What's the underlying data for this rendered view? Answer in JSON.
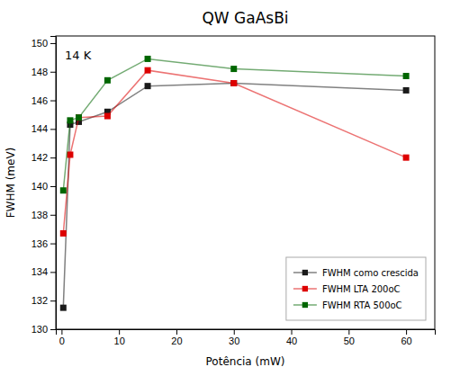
{
  "chart_data": {
    "type": "line",
    "title": "QW GaAsBi",
    "xlabel": "Potência (mW)",
    "ylabel": "FWHM (meV)",
    "annotation": "14 K",
    "xlim": [
      -1,
      65
    ],
    "ylim": [
      130,
      150.5
    ],
    "xticks": [
      0,
      10,
      20,
      30,
      40,
      50,
      60
    ],
    "yticks": [
      130,
      132,
      134,
      136,
      138,
      140,
      142,
      144,
      146,
      148,
      150
    ],
    "grid": false,
    "legend": "lower right",
    "series": [
      {
        "name": "FWHM como crescida",
        "color": "#1a1a1a",
        "marker": "square",
        "x": [
          0.3,
          1.5,
          3.0,
          8.0,
          15.0,
          30.0,
          60.0
        ],
        "values": [
          131.5,
          144.3,
          144.5,
          145.2,
          147.0,
          147.2,
          146.7
        ]
      },
      {
        "name": "FWHM LTA 200oC",
        "color": "#dd0000",
        "marker": "square",
        "x": [
          0.3,
          1.5,
          3.0,
          8.0,
          15.0,
          30.0,
          60.0
        ],
        "values": [
          136.7,
          142.2,
          144.8,
          144.9,
          148.1,
          147.2,
          142.0
        ]
      },
      {
        "name": "FWHM RTA 500oC",
        "color": "#006600",
        "marker": "square",
        "x": [
          0.3,
          1.5,
          3.0,
          8.0,
          15.0,
          30.0,
          60.0
        ],
        "values": [
          139.7,
          144.6,
          144.8,
          147.4,
          148.9,
          148.2,
          147.7
        ]
      }
    ]
  }
}
